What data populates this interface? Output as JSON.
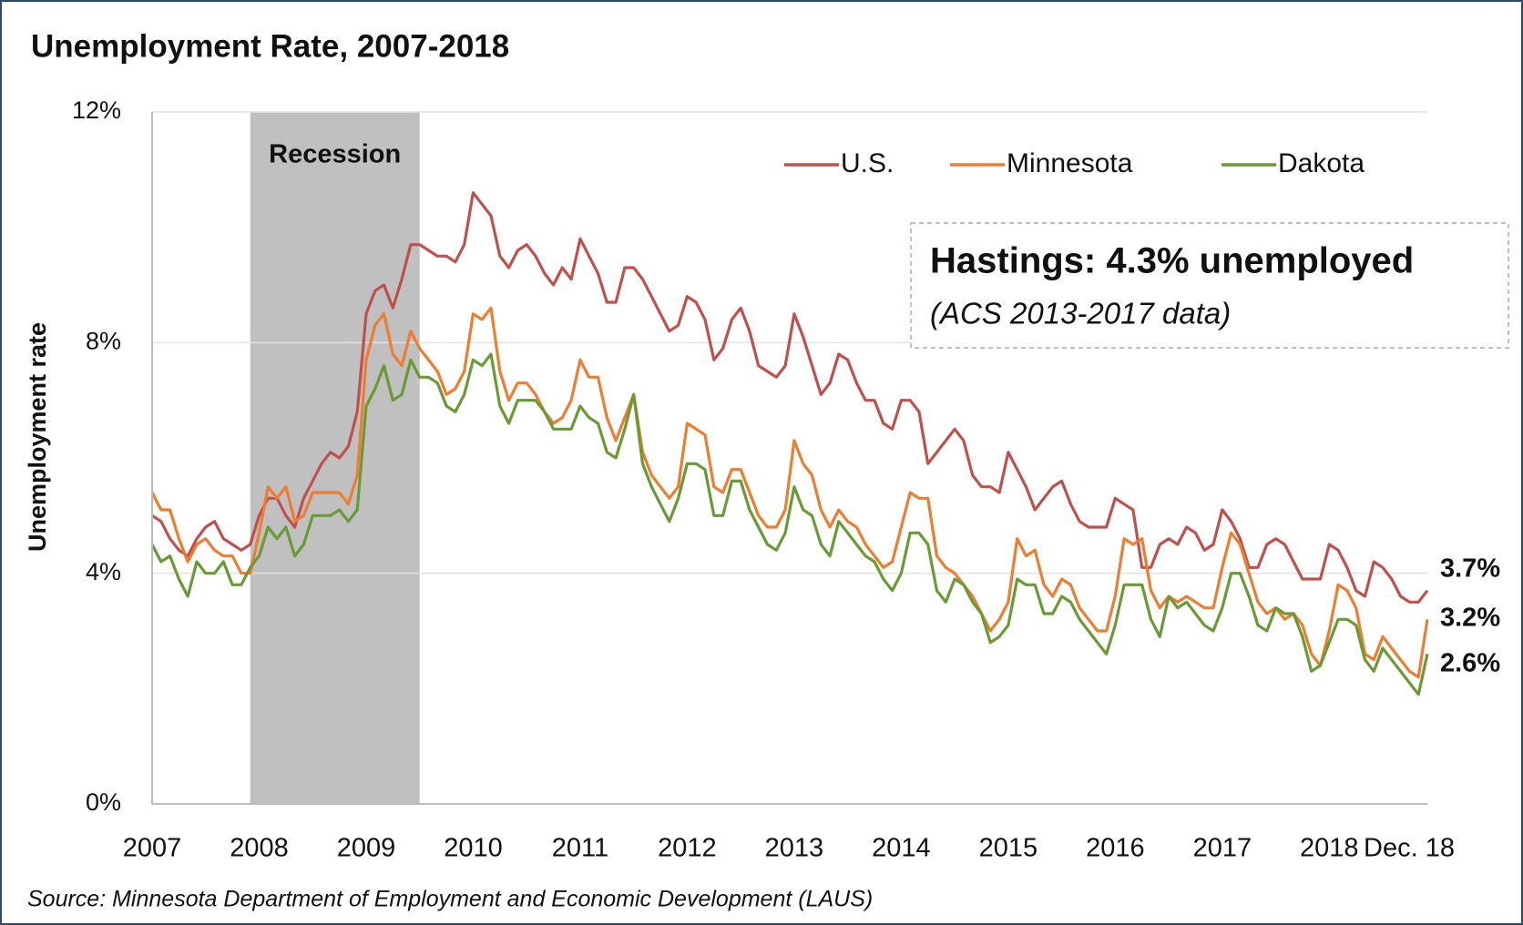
{
  "chart_data": {
    "type": "line",
    "title": "Unemployment Rate, 2007-2018",
    "y_label": "Unemployment rate",
    "source": "Source: Minnesota Department of Employment and Economic Development (LAUS)",
    "annotation": {
      "title": "Hastings: 4.3% unemployed",
      "subtitle": "(ACS 2013-2017 data)"
    },
    "recession": {
      "label": "Recession",
      "start": 11,
      "end": 30,
      "color": "#c0c0c0"
    },
    "categories": [
      "2007",
      null,
      null,
      null,
      null,
      null,
      null,
      null,
      null,
      null,
      null,
      null,
      "2008",
      null,
      null,
      null,
      null,
      null,
      null,
      null,
      null,
      null,
      null,
      null,
      "2009",
      null,
      null,
      null,
      null,
      null,
      null,
      null,
      null,
      null,
      null,
      null,
      "2010",
      null,
      null,
      null,
      null,
      null,
      null,
      null,
      null,
      null,
      null,
      null,
      "2011",
      null,
      null,
      null,
      null,
      null,
      null,
      null,
      null,
      null,
      null,
      null,
      "2012",
      null,
      null,
      null,
      null,
      null,
      null,
      null,
      null,
      null,
      null,
      null,
      "2013",
      null,
      null,
      null,
      null,
      null,
      null,
      null,
      null,
      null,
      null,
      null,
      "2014",
      null,
      null,
      null,
      null,
      null,
      null,
      null,
      null,
      null,
      null,
      null,
      "2015",
      null,
      null,
      null,
      null,
      null,
      null,
      null,
      null,
      null,
      null,
      null,
      "2016",
      null,
      null,
      null,
      null,
      null,
      null,
      null,
      null,
      null,
      null,
      null,
      "2017",
      null,
      null,
      null,
      null,
      null,
      null,
      null,
      null,
      null,
      null,
      null,
      "2018",
      null,
      null,
      null,
      null,
      null,
      null,
      null,
      null,
      null,
      null,
      "Dec. 18"
    ],
    "series": [
      {
        "name": "U.S.",
        "color": "#c0504d",
        "label_color": "#c0504d",
        "values": [
          5.0,
          4.9,
          4.6,
          4.4,
          4.3,
          4.6,
          4.8,
          4.9,
          4.6,
          4.5,
          4.4,
          4.5,
          5.0,
          5.3,
          5.3,
          5.0,
          4.8,
          5.3,
          5.6,
          5.9,
          6.1,
          6.0,
          6.2,
          6.8,
          8.5,
          8.9,
          9.0,
          8.6,
          9.1,
          9.7,
          9.7,
          9.6,
          9.5,
          9.5,
          9.4,
          9.7,
          10.6,
          10.4,
          10.2,
          9.5,
          9.3,
          9.6,
          9.7,
          9.5,
          9.2,
          9.0,
          9.3,
          9.1,
          9.8,
          9.5,
          9.2,
          8.7,
          8.7,
          9.3,
          9.3,
          9.1,
          8.8,
          8.5,
          8.2,
          8.3,
          8.8,
          8.7,
          8.4,
          7.7,
          7.9,
          8.4,
          8.6,
          8.2,
          7.6,
          7.5,
          7.4,
          7.6,
          8.5,
          8.1,
          7.6,
          7.1,
          7.3,
          7.8,
          7.7,
          7.3,
          7.0,
          7.0,
          6.6,
          6.5,
          7.0,
          7.0,
          6.8,
          5.9,
          6.1,
          6.3,
          6.5,
          6.3,
          5.7,
          5.5,
          5.5,
          5.4,
          6.1,
          5.8,
          5.5,
          5.1,
          5.3,
          5.5,
          5.6,
          5.2,
          4.9,
          4.8,
          4.8,
          4.8,
          5.3,
          5.2,
          5.1,
          4.1,
          4.1,
          4.5,
          4.6,
          4.5,
          4.8,
          4.7,
          4.4,
          4.5,
          5.1,
          4.9,
          4.6,
          4.1,
          4.1,
          4.5,
          4.6,
          4.5,
          4.2,
          3.9,
          3.9,
          3.9,
          4.5,
          4.4,
          4.1,
          3.7,
          3.6,
          4.2,
          4.1,
          3.9,
          3.6,
          3.5,
          3.5,
          3.7
        ],
        "value_labels": [
          null,
          null,
          null,
          null,
          null,
          null,
          null,
          null,
          null,
          null,
          null,
          null,
          null,
          null,
          null,
          null,
          null,
          null,
          null,
          null,
          null,
          null,
          null,
          null,
          null,
          null,
          null,
          null,
          null,
          null,
          null,
          null,
          null,
          null,
          null,
          null,
          null,
          null,
          null,
          null,
          null,
          null,
          null,
          null,
          null,
          null,
          null,
          null,
          null,
          null,
          null,
          null,
          null,
          null,
          null,
          null,
          null,
          null,
          null,
          null,
          null,
          null,
          null,
          null,
          null,
          null,
          null,
          null,
          null,
          null,
          null,
          null,
          null,
          null,
          null,
          null,
          null,
          null,
          null,
          null,
          null,
          null,
          null,
          null,
          null,
          null,
          null,
          null,
          null,
          null,
          null,
          null,
          null,
          null,
          null,
          null,
          null,
          null,
          null,
          null,
          null,
          null,
          null,
          null,
          null,
          null,
          null,
          null,
          null,
          null,
          null,
          null,
          null,
          null,
          null,
          null,
          null,
          null,
          null,
          null,
          null,
          null,
          null,
          null,
          null,
          null,
          null,
          null,
          null,
          null,
          null,
          null,
          null,
          null,
          null,
          null,
          null,
          null,
          null,
          null,
          null,
          null,
          null,
          "3.7%"
        ]
      },
      {
        "name": "Minnesota",
        "color": "#ed7d31",
        "label_color": "#2e5a8c",
        "values": [
          5.4,
          5.1,
          5.1,
          4.6,
          4.2,
          4.5,
          4.6,
          4.4,
          4.3,
          4.3,
          4.0,
          4.0,
          4.7,
          5.5,
          5.3,
          5.5,
          4.9,
          5.0,
          5.4,
          5.4,
          5.4,
          5.4,
          5.2,
          5.7,
          7.7,
          8.3,
          8.5,
          7.8,
          7.6,
          8.2,
          7.9,
          7.7,
          7.5,
          7.1,
          7.2,
          7.5,
          8.5,
          8.4,
          8.6,
          7.5,
          7.0,
          7.3,
          7.3,
          7.1,
          6.8,
          6.6,
          6.7,
          7.0,
          7.7,
          7.4,
          7.4,
          6.7,
          6.3,
          6.7,
          7.1,
          6.1,
          5.7,
          5.5,
          5.3,
          5.5,
          6.6,
          6.5,
          6.4,
          5.5,
          5.4,
          5.8,
          5.8,
          5.4,
          5.0,
          4.8,
          4.8,
          5.1,
          6.3,
          5.9,
          5.7,
          5.1,
          4.8,
          5.1,
          4.9,
          4.8,
          4.5,
          4.3,
          4.1,
          4.2,
          4.8,
          5.4,
          5.3,
          5.3,
          4.3,
          4.1,
          4.0,
          3.8,
          3.6,
          3.3,
          3.0,
          3.2,
          3.5,
          4.6,
          4.3,
          4.4,
          3.8,
          3.6,
          3.9,
          3.8,
          3.4,
          3.2,
          3.0,
          3.0,
          3.6,
          4.6,
          4.5,
          4.6,
          3.7,
          3.4,
          3.6,
          3.5,
          3.6,
          3.5,
          3.4,
          3.4,
          4.1,
          4.7,
          4.5,
          4.0,
          3.5,
          3.3,
          3.4,
          3.2,
          3.3,
          3.1,
          2.6,
          2.4,
          3.0,
          3.8,
          3.7,
          3.4,
          2.6,
          2.5,
          2.9,
          2.7,
          2.5,
          2.3,
          2.2,
          3.2
        ],
        "value_labels": [
          null,
          null,
          null,
          null,
          null,
          null,
          null,
          null,
          null,
          null,
          null,
          null,
          null,
          null,
          null,
          null,
          null,
          null,
          null,
          null,
          null,
          null,
          null,
          null,
          null,
          null,
          null,
          null,
          null,
          null,
          null,
          null,
          null,
          null,
          null,
          null,
          null,
          null,
          null,
          null,
          null,
          null,
          null,
          null,
          null,
          null,
          null,
          null,
          null,
          null,
          null,
          null,
          null,
          null,
          null,
          null,
          null,
          null,
          null,
          null,
          null,
          null,
          null,
          null,
          null,
          null,
          null,
          null,
          null,
          null,
          null,
          null,
          null,
          null,
          null,
          null,
          null,
          null,
          null,
          null,
          null,
          null,
          null,
          null,
          null,
          null,
          null,
          null,
          null,
          null,
          null,
          null,
          null,
          null,
          null,
          null,
          null,
          null,
          null,
          null,
          null,
          null,
          null,
          null,
          null,
          null,
          null,
          null,
          null,
          null,
          null,
          null,
          null,
          null,
          null,
          null,
          null,
          null,
          null,
          null,
          null,
          null,
          null,
          null,
          null,
          null,
          null,
          null,
          null,
          null,
          null,
          null,
          null,
          null,
          null,
          null,
          null,
          null,
          null,
          null,
          null,
          null,
          null,
          "3.2%"
        ]
      },
      {
        "name": "Dakota",
        "color": "#6a9a35",
        "label_color": "#5a8a2a",
        "values": [
          4.5,
          4.2,
          4.3,
          3.9,
          3.6,
          4.2,
          4.0,
          4.0,
          4.2,
          3.8,
          3.8,
          4.1,
          4.3,
          4.8,
          4.6,
          4.8,
          4.3,
          4.5,
          5.0,
          5.0,
          5.0,
          5.1,
          4.9,
          5.1,
          6.9,
          7.2,
          7.6,
          7.0,
          7.1,
          7.7,
          7.4,
          7.4,
          7.3,
          6.9,
          6.8,
          7.1,
          7.7,
          7.6,
          7.8,
          6.9,
          6.6,
          7.0,
          7.0,
          7.0,
          6.8,
          6.5,
          6.5,
          6.5,
          6.9,
          6.7,
          6.6,
          6.1,
          6.0,
          6.5,
          7.1,
          5.9,
          5.5,
          5.2,
          4.9,
          5.3,
          5.9,
          5.9,
          5.8,
          5.0,
          5.0,
          5.6,
          5.6,
          5.1,
          4.8,
          4.5,
          4.4,
          4.7,
          5.5,
          5.1,
          5.0,
          4.5,
          4.3,
          4.9,
          4.7,
          4.5,
          4.3,
          4.2,
          3.9,
          3.7,
          4.0,
          4.7,
          4.7,
          4.5,
          3.7,
          3.5,
          3.9,
          3.8,
          3.5,
          3.3,
          2.8,
          2.9,
          3.1,
          3.9,
          3.8,
          3.8,
          3.3,
          3.3,
          3.6,
          3.5,
          3.2,
          3.0,
          2.8,
          2.6,
          3.1,
          3.8,
          3.8,
          3.8,
          3.2,
          2.9,
          3.6,
          3.4,
          3.5,
          3.3,
          3.1,
          3.0,
          3.4,
          4.0,
          4.0,
          3.6,
          3.1,
          3.0,
          3.4,
          3.3,
          3.3,
          2.9,
          2.3,
          2.4,
          2.8,
          3.2,
          3.2,
          3.1,
          2.5,
          2.3,
          2.7,
          2.5,
          2.3,
          2.1,
          1.9,
          2.6
        ],
        "value_labels": [
          null,
          null,
          null,
          null,
          null,
          null,
          null,
          null,
          null,
          null,
          null,
          null,
          null,
          null,
          null,
          null,
          null,
          null,
          null,
          null,
          null,
          null,
          null,
          null,
          null,
          null,
          null,
          null,
          null,
          null,
          null,
          null,
          null,
          null,
          null,
          null,
          null,
          null,
          null,
          null,
          null,
          null,
          null,
          null,
          null,
          null,
          null,
          null,
          null,
          null,
          null,
          null,
          null,
          null,
          null,
          null,
          null,
          null,
          null,
          null,
          null,
          null,
          null,
          null,
          null,
          null,
          null,
          null,
          null,
          null,
          null,
          null,
          null,
          null,
          null,
          null,
          null,
          null,
          null,
          null,
          null,
          null,
          null,
          null,
          null,
          null,
          null,
          null,
          null,
          null,
          null,
          null,
          null,
          null,
          null,
          null,
          null,
          null,
          null,
          null,
          null,
          null,
          null,
          null,
          null,
          null,
          null,
          null,
          null,
          null,
          null,
          null,
          null,
          null,
          null,
          null,
          null,
          null,
          null,
          null,
          null,
          null,
          null,
          null,
          null,
          null,
          null,
          null,
          null,
          null,
          null,
          null,
          null,
          null,
          null,
          null,
          null,
          null,
          null,
          null,
          null,
          null,
          null,
          "2.6%"
        ]
      }
    ],
    "ylim": [
      0,
      12
    ],
    "yticks": [
      {
        "value": 0,
        "label": "0%"
      },
      {
        "value": 4,
        "label": "4%"
      },
      {
        "value": 8,
        "label": "8%"
      },
      {
        "value": 12,
        "label": "12%"
      }
    ],
    "grid": true,
    "legend": "top"
  }
}
